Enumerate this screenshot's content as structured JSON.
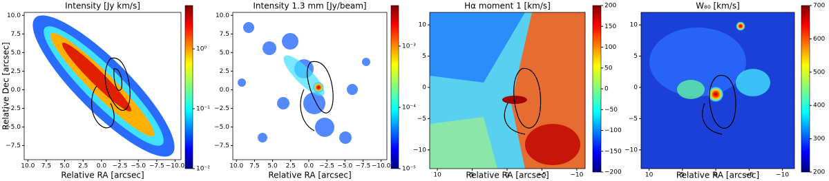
{
  "chart_data": [
    {
      "type": "image",
      "title": "Intensity [Jy km/s]",
      "xlabel": "Relative RA [arcsec]",
      "ylabel": "Relative Dec [arcsec]",
      "xlim": [
        10.5,
        -10.8
      ],
      "ylim": [
        -9.4,
        10.4
      ],
      "xticks": [
        {
          "value": 10,
          "label": "10.0"
        },
        7.5,
        {
          "value": 5,
          "label": "5.0"
        },
        2.5,
        {
          "value": 0,
          "label": "0.0"
        },
        {
          "value": -2.5,
          "label": "−2.5"
        },
        {
          "value": -5,
          "label": "−5.0"
        },
        {
          "value": -7.5,
          "label": "−7.5"
        },
        {
          "value": -10,
          "label": "−10.0"
        }
      ],
      "yticks": [
        {
          "value": 10,
          "label": "10.0"
        },
        7.5,
        {
          "value": 5,
          "label": "5.0"
        },
        2.5,
        {
          "value": 0,
          "label": "0.0"
        },
        {
          "value": -2.5,
          "label": "−2.5"
        },
        {
          "value": -5,
          "label": "−5.0"
        },
        {
          "value": -7.5,
          "label": "−7.5"
        }
      ],
      "colorbar": {
        "scale": "log",
        "lim": [
          0.01,
          5.3
        ],
        "ticks": [
          {
            "value": 1,
            "label": "10⁰"
          },
          {
            "value": 0.1,
            "label": "10⁻¹"
          },
          {
            "value": 0.01,
            "label": "10⁻²"
          }
        ]
      }
    },
    {
      "type": "image",
      "title": "Intensity 1.3 mm [Jy/beam]",
      "xlabel": "Relative RA [arcsec]",
      "xlim": [
        10.5,
        -10.8
      ],
      "ylim": [
        -9.4,
        10.4
      ],
      "xticks": [
        {
          "value": 10,
          "label": "10.0"
        },
        7.5,
        {
          "value": 5,
          "label": "5.0"
        },
        2.5,
        {
          "value": 0,
          "label": "0.0"
        },
        {
          "value": -2.5,
          "label": "−2.5"
        },
        {
          "value": -5,
          "label": "−5.0"
        },
        {
          "value": -7.5,
          "label": "−7.5"
        },
        {
          "value": -10,
          "label": "−10.0"
        }
      ],
      "yticks": [
        {
          "value": 10,
          "label": "10.0"
        },
        7.5,
        {
          "value": 5,
          "label": "5.0"
        },
        2.5,
        {
          "value": 0,
          "label": "0.0"
        },
        {
          "value": -2.5,
          "label": "−2.5"
        },
        {
          "value": -5,
          "label": "−5.0"
        },
        {
          "value": -7.5,
          "label": "−7.5"
        }
      ],
      "colorbar": {
        "scale": "log",
        "lim": [
          1e-05,
          0.0046
        ],
        "ticks": [
          {
            "value": 0.001,
            "label": "10⁻³"
          },
          {
            "value": 0.0001,
            "label": "10⁻⁴"
          },
          {
            "value": 1e-05,
            "label": "10⁻⁵"
          }
        ]
      }
    },
    {
      "type": "image",
      "title": "Hα moment 1 [km/s]",
      "xlabel": "Relative RA [arcsec]",
      "xlim": [
        11.1,
        -11.2
      ],
      "ylim": [
        -13,
        12
      ],
      "xticks": [
        10,
        5,
        0,
        {
          "value": -5,
          "label": "−5"
        },
        {
          "value": -10,
          "label": "−10"
        }
      ],
      "yticks": [
        10,
        5,
        0,
        {
          "value": -5,
          "label": "−5"
        },
        {
          "value": -10,
          "label": "−10"
        }
      ],
      "colorbar": {
        "scale": "linear",
        "lim": [
          -200,
          200
        ],
        "ticks": [
          200,
          150,
          100,
          50,
          0,
          {
            "value": -50,
            "label": "−50"
          },
          {
            "value": -100,
            "label": "−100"
          },
          {
            "value": -150,
            "label": "−150"
          },
          {
            "value": -200,
            "label": "−200"
          }
        ]
      }
    },
    {
      "type": "image",
      "title": "W₈₀ [km/s]",
      "xlabel": "Relative RA [arcsec]",
      "xlim": [
        11.2,
        -11.8
      ],
      "ylim": [
        -13,
        12
      ],
      "xticks": [
        10,
        5,
        0,
        {
          "value": -5,
          "label": "−5"
        },
        {
          "value": -10,
          "label": "−10"
        }
      ],
      "yticks": [
        10,
        5,
        0,
        {
          "value": -5,
          "label": "−5"
        },
        {
          "value": -10,
          "label": "−10"
        }
      ],
      "colorbar": {
        "scale": "linear",
        "lim": [
          200,
          700
        ],
        "ticks": [
          700,
          600,
          500,
          400,
          300,
          200
        ]
      }
    }
  ]
}
